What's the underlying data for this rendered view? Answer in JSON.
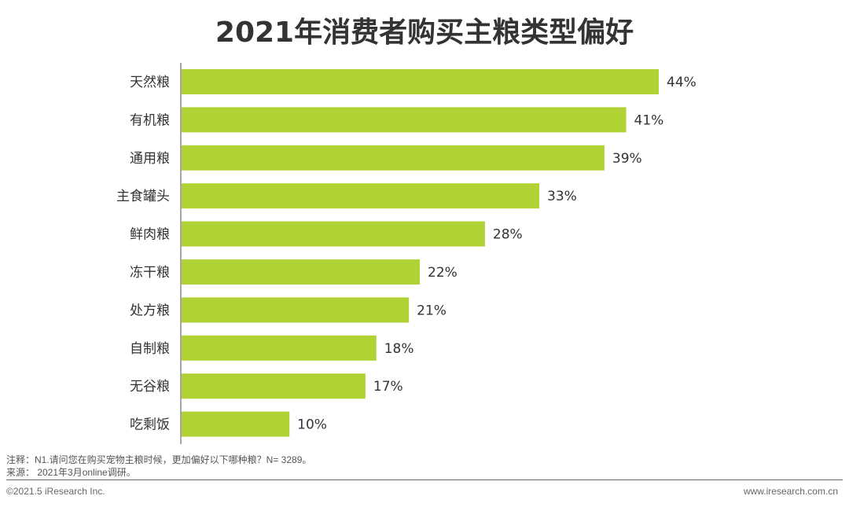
{
  "chart_data": {
    "type": "bar",
    "orientation": "horizontal",
    "title": "2021年消费者购买主粮类型偏好",
    "categories": [
      "天然粮",
      "有机粮",
      "通用粮",
      "主食罐头",
      "鲜肉粮",
      "冻干粮",
      "处方粮",
      "自制粮",
      "无谷粮",
      "吃剩饭"
    ],
    "values": [
      44,
      41,
      39,
      33,
      28,
      22,
      21,
      18,
      17,
      10
    ],
    "labels": [
      "44%",
      "41%",
      "39%",
      "33%",
      "28%",
      "22%",
      "21%",
      "18%",
      "17%",
      "10%"
    ],
    "unit": "%",
    "xlim": [
      0,
      44
    ],
    "grid": false,
    "bar_color": "#b0d235"
  },
  "footer": {
    "note": "注释：N1.请问您在购买宠物主粮时候，更加偏好以下哪种粮？N= 3289。",
    "source": "来源：  2021年3月online调研。",
    "copyright": "©2021.5 iResearch Inc.",
    "website": "www.iresearch.com.cn"
  }
}
